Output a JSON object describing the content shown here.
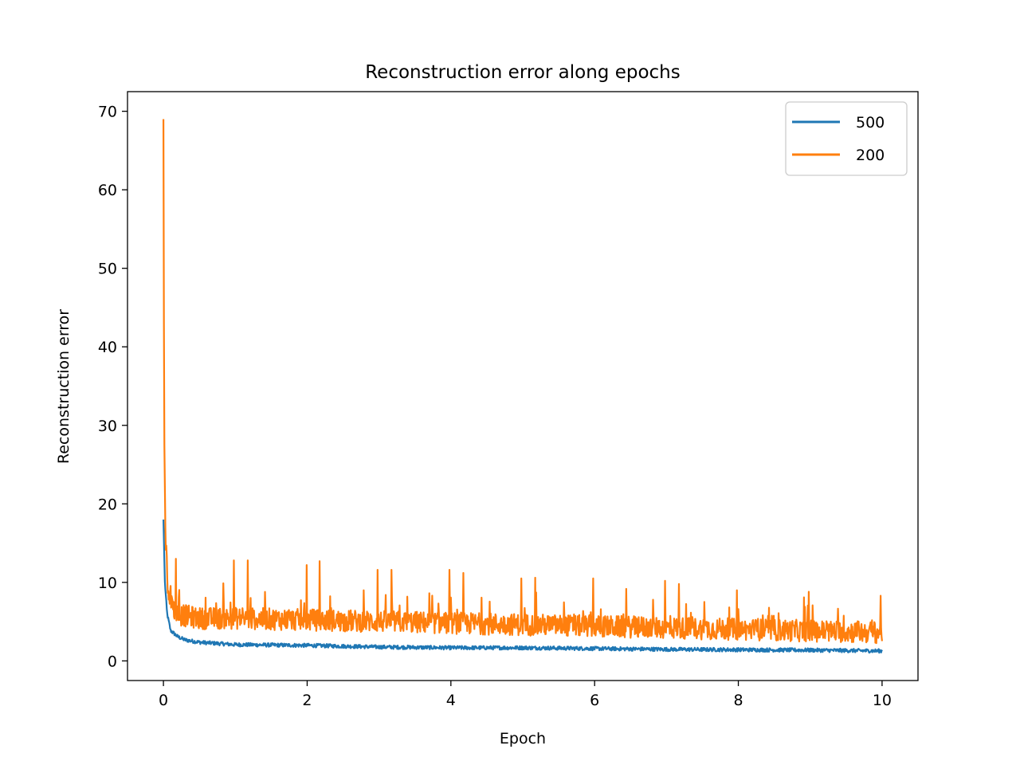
{
  "chart_data": {
    "type": "line",
    "title": "Reconstruction error along epochs",
    "xlabel": "Epoch",
    "ylabel": "Reconstruction error",
    "xlim": [
      -0.5,
      10.5
    ],
    "ylim": [
      -2.5,
      72.5
    ],
    "xticks": [
      0,
      2,
      4,
      6,
      8,
      10
    ],
    "yticks": [
      0,
      10,
      20,
      30,
      40,
      50,
      60,
      70
    ],
    "grid": false,
    "legend_position": "top-right",
    "series": [
      {
        "name": "500",
        "color": "#1f77b4",
        "points": [
          [
            0.0,
            18.0
          ],
          [
            0.02,
            10.0
          ],
          [
            0.05,
            6.0
          ],
          [
            0.1,
            3.8
          ],
          [
            0.2,
            3.0
          ],
          [
            0.3,
            2.6
          ],
          [
            0.5,
            2.3
          ],
          [
            1.0,
            2.0
          ],
          [
            2.0,
            1.9
          ],
          [
            3.0,
            1.7
          ],
          [
            4.0,
            1.6
          ],
          [
            5.0,
            1.6
          ],
          [
            6.0,
            1.5
          ],
          [
            7.0,
            1.4
          ],
          [
            8.0,
            1.35
          ],
          [
            9.0,
            1.3
          ],
          [
            10.0,
            1.2
          ]
        ],
        "noise": 0.6
      },
      {
        "name": "200",
        "color": "#ff7f0e",
        "points": [
          [
            0.0,
            69.0
          ],
          [
            0.01,
            30.0
          ],
          [
            0.03,
            15.0
          ],
          [
            0.06,
            9.0
          ],
          [
            0.1,
            7.0
          ],
          [
            0.2,
            5.5
          ],
          [
            0.5,
            5.0
          ],
          [
            1.0,
            5.0
          ],
          [
            2.0,
            4.8
          ],
          [
            3.0,
            4.6
          ],
          [
            4.0,
            4.4
          ],
          [
            5.0,
            4.2
          ],
          [
            6.0,
            4.0
          ],
          [
            7.0,
            3.8
          ],
          [
            8.0,
            3.6
          ],
          [
            9.0,
            3.4
          ],
          [
            10.0,
            3.2
          ]
        ],
        "noise": 2.8,
        "peaks": [
          [
            0.17,
            13
          ],
          [
            0.98,
            12.8
          ],
          [
            1.17,
            12.8
          ],
          [
            1.99,
            12.2
          ],
          [
            2.17,
            12.7
          ],
          [
            2.98,
            11.6
          ],
          [
            3.17,
            11.6
          ],
          [
            3.98,
            11.6
          ],
          [
            4.17,
            11.2
          ],
          [
            4.98,
            10.5
          ],
          [
            5.17,
            10.6
          ],
          [
            5.98,
            10.5
          ],
          [
            6.98,
            10.2
          ],
          [
            7.17,
            9.8
          ],
          [
            7.98,
            9.0
          ],
          [
            8.98,
            8.8
          ],
          [
            9.98,
            8.3
          ]
        ]
      }
    ]
  }
}
